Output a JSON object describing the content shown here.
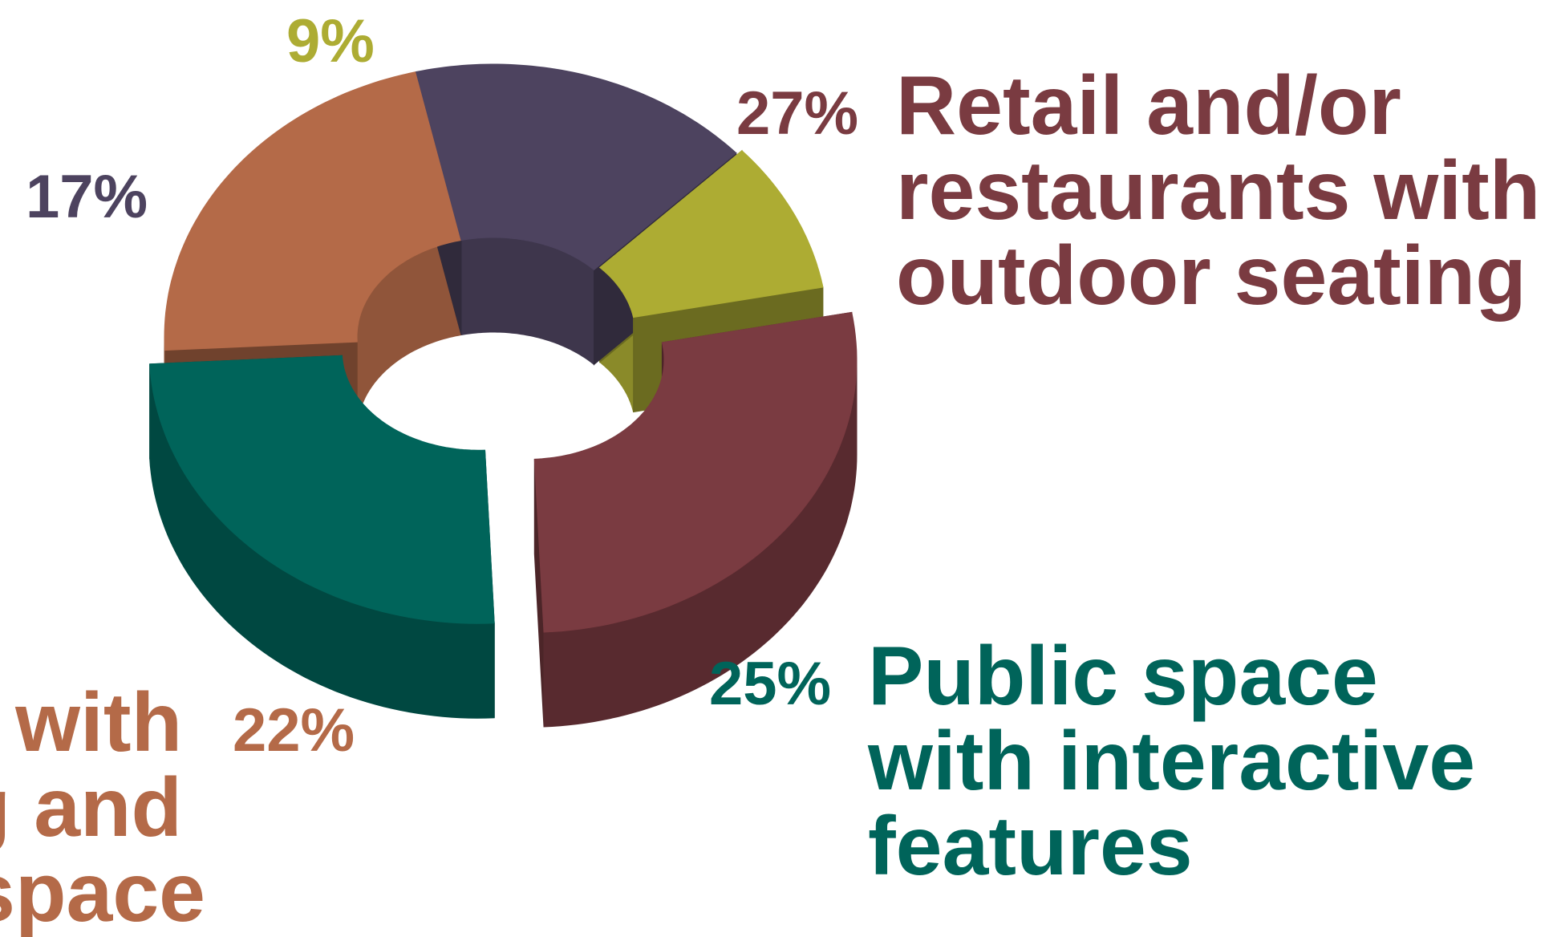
{
  "chart_data": {
    "type": "pie",
    "style": "3d-donut",
    "title": "",
    "slices": [
      {
        "label_lines": [
          "Retail and/or",
          "restaurants with",
          "outdoor seating"
        ],
        "value": 27,
        "pct_text": "27%",
        "color": "#7A3B41"
      },
      {
        "label_lines": [
          "Public space",
          "with interactive",
          "features"
        ],
        "value": 25,
        "pct_text": "25%",
        "color": "#00645A"
      },
      {
        "label_lines": [
          "n with",
          "g and",
          "space"
        ],
        "value": 22,
        "pct_text": "22%",
        "color": "#B46A48"
      },
      {
        "label_lines": [],
        "value": 17,
        "pct_text": "17%",
        "color": "#4D435F"
      },
      {
        "label_lines": [],
        "value": 9,
        "pct_text": "9%",
        "color": "#ADAC33"
      }
    ]
  }
}
